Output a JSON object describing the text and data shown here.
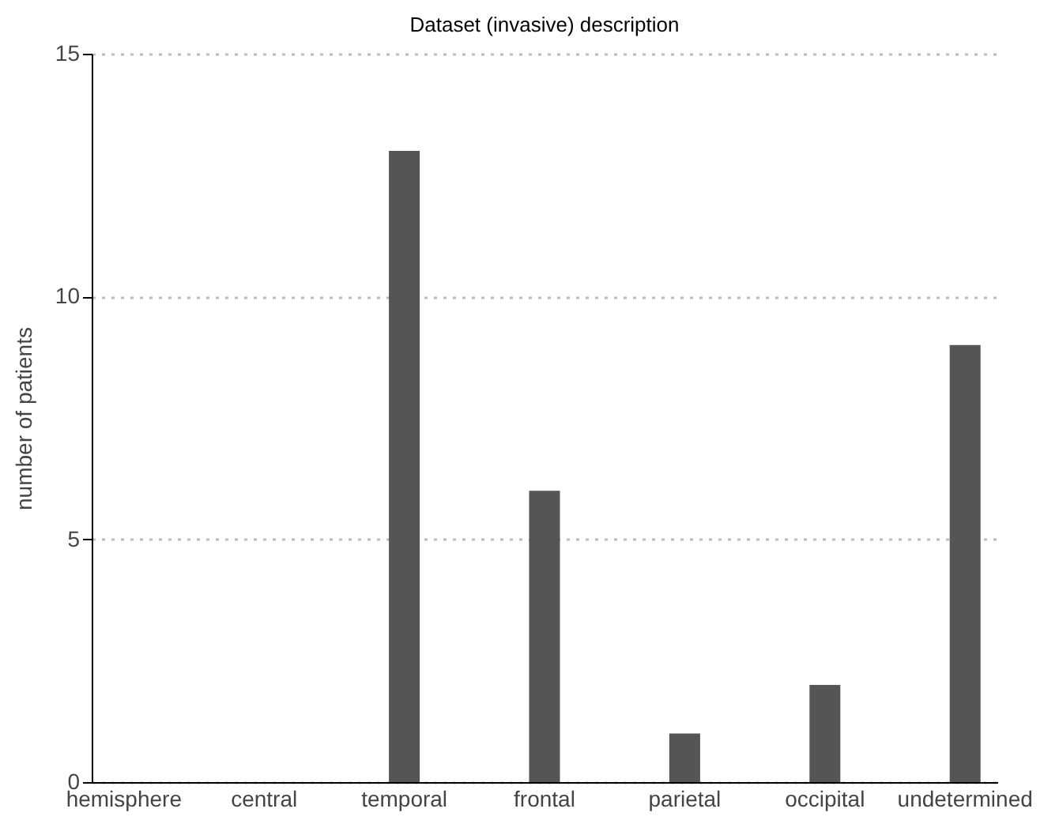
{
  "chart_data": {
    "type": "bar",
    "title": "Dataset (invasive) description",
    "ylabel": "number of patients",
    "categories": [
      "hemisphere",
      "central",
      "temporal",
      "frontal",
      "parietal",
      "occipital",
      "undetermined"
    ],
    "values": [
      0,
      0,
      13,
      6,
      1,
      2,
      9
    ],
    "color": "#555555",
    "ylim": [
      0,
      15
    ],
    "yticks": [
      0,
      5,
      10,
      15
    ],
    "grid": "y"
  }
}
